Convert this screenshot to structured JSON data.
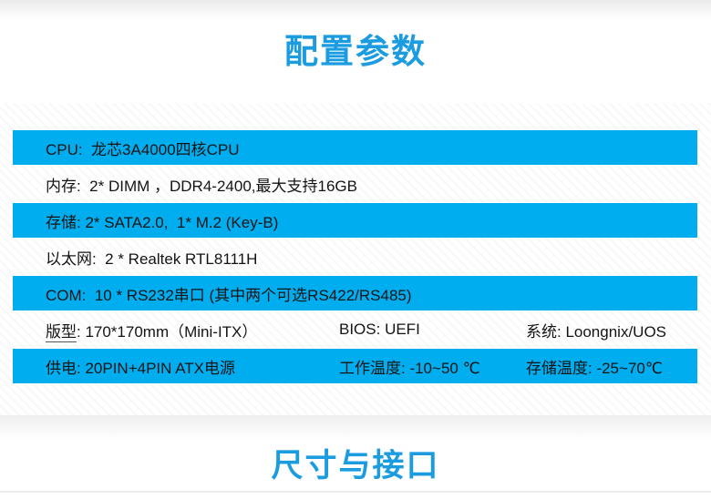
{
  "page": {
    "title_top": "配置参数",
    "title_bottom": "尺寸与接口",
    "accent_color": "#1b9ce1",
    "row_highlight_color": "#00aef0"
  },
  "spec_table": {
    "rows": [
      {
        "type": "blue",
        "cells": [
          {
            "text": "CPU:  龙芯3A4000四核CPU"
          }
        ]
      },
      {
        "type": "white",
        "cells": [
          {
            "text": "内存:  2* DIMM ，DDR4-2400,最大支持16GB"
          }
        ]
      },
      {
        "type": "blue",
        "cells": [
          {
            "text": "存储: 2* SATA2.0,  1* M.2 (Key-B)"
          }
        ]
      },
      {
        "type": "white",
        "cells": [
          {
            "text": "以太网:  2 * Realtek RTL8111H"
          }
        ]
      },
      {
        "type": "blue",
        "cells": [
          {
            "text": "COM:  10 * RS232串口 (其中两个可选RS422/RS485)"
          }
        ]
      },
      {
        "type": "white",
        "cells": [
          {
            "label_underlined": "版型",
            "text": ": 170*170mm（Mini-ITX）"
          },
          {
            "text": "BIOS: UEFI"
          },
          {
            "text": "系统: Loongnix/UOS"
          }
        ]
      },
      {
        "type": "blue",
        "cells": [
          {
            "text": "供电: 20PIN+4PIN ATX电源"
          },
          {
            "text": "工作温度: -10~50 ℃"
          },
          {
            "text": "存储温度: -25~70℃"
          }
        ]
      }
    ]
  }
}
